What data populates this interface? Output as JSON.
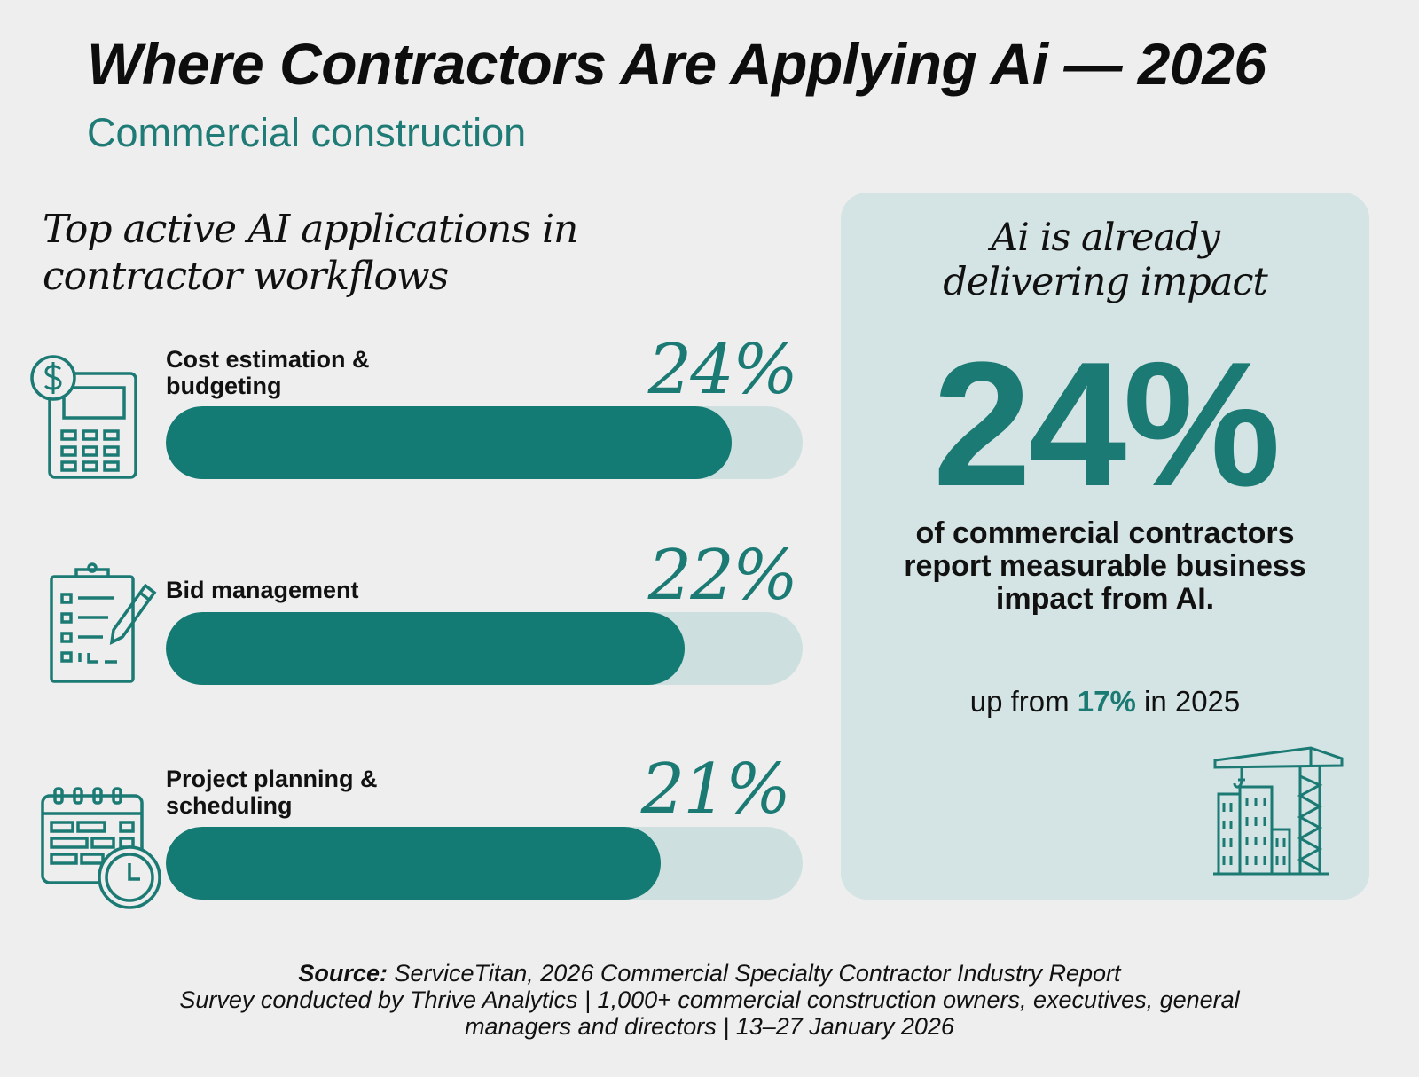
{
  "header": {
    "title": "Where Contractors Are Applying Ai — 2026",
    "subtitle": "Commercial construction"
  },
  "section_title_line1": "Top active AI applications in",
  "section_title_line2": "contractor workflows",
  "chart_data": {
    "type": "bar",
    "orientation": "horizontal",
    "categories": [
      "Cost estimation & budgeting",
      "Bid management",
      "Project planning & scheduling"
    ],
    "values": [
      24,
      22,
      21
    ],
    "value_labels": [
      "24%",
      "22%",
      "21%"
    ],
    "unit": "%",
    "xlim": [
      0,
      27
    ],
    "title": "",
    "xlabel": "",
    "ylabel": "",
    "grid": false,
    "colors": {
      "fill": "#137a74",
      "track": "#cde0df",
      "value_text": "#1b7a74"
    }
  },
  "rows": [
    {
      "label_line1": "Cost estimation &",
      "label_line2": "budgeting",
      "icon": "calculator-dollar-icon"
    },
    {
      "label_line1": "Bid management",
      "label_line2": "",
      "icon": "clipboard-pencil-icon"
    },
    {
      "label_line1": "Project planning &",
      "label_line2": "scheduling",
      "icon": "calendar-clock-icon"
    }
  ],
  "panel": {
    "title_line1": "Ai is already",
    "title_line2": "delivering impact",
    "big_value": "24%",
    "desc_line1": "of commercial contractors",
    "desc_line2": "report measurable business",
    "desc_line3": "impact from AI.",
    "note_prefix": "up from ",
    "note_value": "17%",
    "note_suffix": " in 2025",
    "icon": "construction-crane-buildings-icon",
    "background": "#d4e3e3",
    "accent": "#1b7a74"
  },
  "footer": {
    "source_label": "Source:",
    "source_text": " ServiceTitan, 2026 Commercial Specialty Contractor Industry Report",
    "line2": "Survey conducted by Thrive Analytics | 1,000+ commercial construction owners, executives, general",
    "line3": "managers and directors | 13–27 January 2026"
  }
}
